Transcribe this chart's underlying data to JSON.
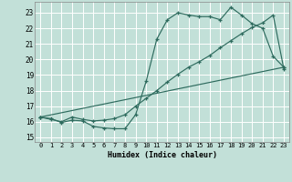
{
  "xlabel": "Humidex (Indice chaleur)",
  "bg_color": "#c2e0d8",
  "grid_color": "#ffffff",
  "line_color": "#2e6b5e",
  "xlim": [
    -0.5,
    23.5
  ],
  "ylim": [
    14.7,
    23.7
  ],
  "yticks": [
    15,
    16,
    17,
    18,
    19,
    20,
    21,
    22,
    23
  ],
  "xticks": [
    0,
    1,
    2,
    3,
    4,
    5,
    6,
    7,
    8,
    9,
    10,
    11,
    12,
    13,
    14,
    15,
    16,
    17,
    18,
    19,
    20,
    21,
    22,
    23
  ],
  "line1_x": [
    0,
    1,
    2,
    3,
    4,
    5,
    6,
    7,
    8,
    9,
    10,
    11,
    12,
    13,
    14,
    15,
    16,
    17,
    18,
    19,
    20,
    21,
    22,
    23
  ],
  "line1_y": [
    16.3,
    16.2,
    15.95,
    16.1,
    16.05,
    15.7,
    15.6,
    15.55,
    15.55,
    16.45,
    18.6,
    21.3,
    22.55,
    23.0,
    22.85,
    22.75,
    22.75,
    22.55,
    23.35,
    22.85,
    22.3,
    22.0,
    20.2,
    19.5
  ],
  "line2_x": [
    0,
    1,
    2,
    3,
    4,
    5,
    6,
    7,
    8,
    9,
    10,
    11,
    12,
    13,
    14,
    15,
    16,
    17,
    18,
    19,
    20,
    21,
    22,
    23
  ],
  "line2_y": [
    16.3,
    16.15,
    16.0,
    16.3,
    16.15,
    16.05,
    16.1,
    16.2,
    16.45,
    17.0,
    17.5,
    18.0,
    18.55,
    19.05,
    19.5,
    19.85,
    20.25,
    20.75,
    21.2,
    21.65,
    22.05,
    22.35,
    22.85,
    19.4
  ],
  "line3_x": [
    0,
    23
  ],
  "line3_y": [
    16.3,
    19.5
  ]
}
